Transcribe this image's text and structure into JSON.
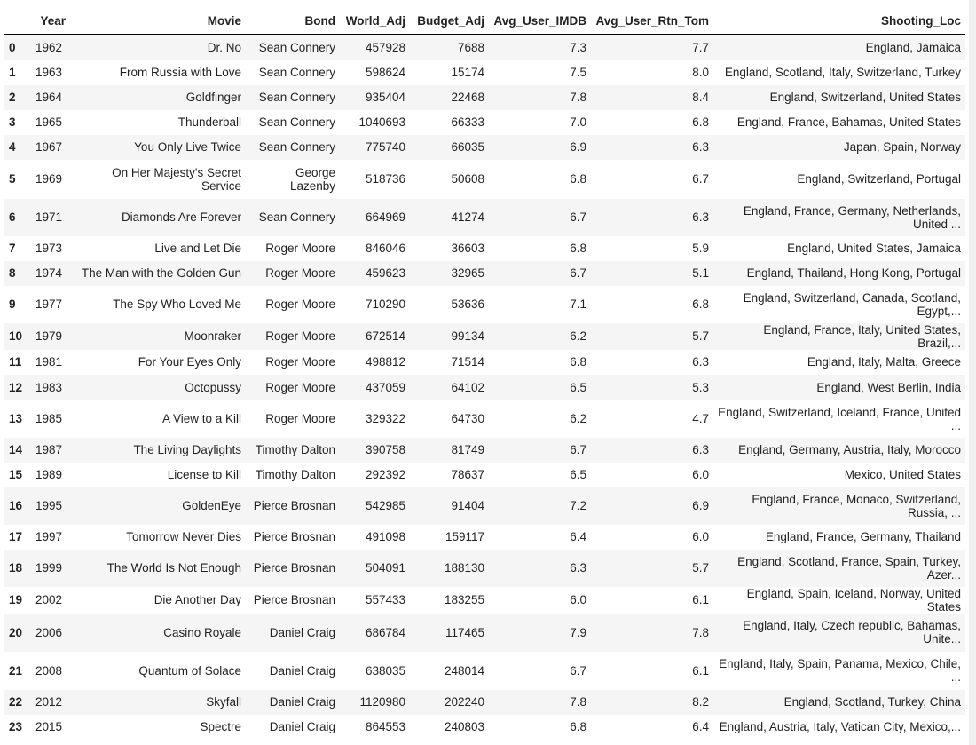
{
  "table": {
    "columns": [
      "Year",
      "Movie",
      "Bond",
      "World_Adj",
      "Budget_Adj",
      "Avg_User_IMDB",
      "Avg_User_Rtn_Tom",
      "Shooting_Loc"
    ],
    "rows": [
      {
        "index": "0",
        "Year": "1962",
        "Movie": "Dr. No",
        "Bond": "Sean Connery",
        "World_Adj": "457928",
        "Budget_Adj": "7688",
        "Avg_User_IMDB": "7.3",
        "Avg_User_Rtn_Tom": "7.7",
        "Shooting_Loc": "England, Jamaica"
      },
      {
        "index": "1",
        "Year": "1963",
        "Movie": "From Russia with Love",
        "Bond": "Sean Connery",
        "World_Adj": "598624",
        "Budget_Adj": "15174",
        "Avg_User_IMDB": "7.5",
        "Avg_User_Rtn_Tom": "8.0",
        "Shooting_Loc": "England, Scotland, Italy, Switzerland, Turkey"
      },
      {
        "index": "2",
        "Year": "1964",
        "Movie": "Goldfinger",
        "Bond": "Sean Connery",
        "World_Adj": "935404",
        "Budget_Adj": "22468",
        "Avg_User_IMDB": "7.8",
        "Avg_User_Rtn_Tom": "8.4",
        "Shooting_Loc": "England, Switzerland, United States"
      },
      {
        "index": "3",
        "Year": "1965",
        "Movie": "Thunderball",
        "Bond": "Sean Connery",
        "World_Adj": "1040693",
        "Budget_Adj": "66333",
        "Avg_User_IMDB": "7.0",
        "Avg_User_Rtn_Tom": "6.8",
        "Shooting_Loc": "England, France, Bahamas, United States"
      },
      {
        "index": "4",
        "Year": "1967",
        "Movie": "You Only Live Twice",
        "Bond": "Sean Connery",
        "World_Adj": "775740",
        "Budget_Adj": "66035",
        "Avg_User_IMDB": "6.9",
        "Avg_User_Rtn_Tom": "6.3",
        "Shooting_Loc": "Japan, Spain, Norway"
      },
      {
        "index": "5",
        "Year": "1969",
        "Movie": "On Her Majesty's Secret Service",
        "Bond": "George Lazenby",
        "World_Adj": "518736",
        "Budget_Adj": "50608",
        "Avg_User_IMDB": "6.8",
        "Avg_User_Rtn_Tom": "6.7",
        "Shooting_Loc": "England, Switzerland, Portugal"
      },
      {
        "index": "6",
        "Year": "1971",
        "Movie": "Diamonds Are Forever",
        "Bond": "Sean Connery",
        "World_Adj": "664969",
        "Budget_Adj": "41274",
        "Avg_User_IMDB": "6.7",
        "Avg_User_Rtn_Tom": "6.3",
        "Shooting_Loc": "England, France, Germany, Netherlands, United ..."
      },
      {
        "index": "7",
        "Year": "1973",
        "Movie": "Live and Let Die",
        "Bond": "Roger Moore",
        "World_Adj": "846046",
        "Budget_Adj": "36603",
        "Avg_User_IMDB": "6.8",
        "Avg_User_Rtn_Tom": "5.9",
        "Shooting_Loc": "England, United States, Jamaica"
      },
      {
        "index": "8",
        "Year": "1974",
        "Movie": "The Man with the Golden Gun",
        "Bond": "Roger Moore",
        "World_Adj": "459623",
        "Budget_Adj": "32965",
        "Avg_User_IMDB": "6.7",
        "Avg_User_Rtn_Tom": "5.1",
        "Shooting_Loc": "England, Thailand, Hong Kong, Portugal"
      },
      {
        "index": "9",
        "Year": "1977",
        "Movie": "The Spy Who Loved Me",
        "Bond": "Roger Moore",
        "World_Adj": "710290",
        "Budget_Adj": "53636",
        "Avg_User_IMDB": "7.1",
        "Avg_User_Rtn_Tom": "6.8",
        "Shooting_Loc": "England, Switzerland, Canada, Scotland, Egypt,..."
      },
      {
        "index": "10",
        "Year": "1979",
        "Movie": "Moonraker",
        "Bond": "Roger Moore",
        "World_Adj": "672514",
        "Budget_Adj": "99134",
        "Avg_User_IMDB": "6.2",
        "Avg_User_Rtn_Tom": "5.7",
        "Shooting_Loc": "England, France, Italy, United States, Brazil,..."
      },
      {
        "index": "11",
        "Year": "1981",
        "Movie": "For Your Eyes Only",
        "Bond": "Roger Moore",
        "World_Adj": "498812",
        "Budget_Adj": "71514",
        "Avg_User_IMDB": "6.8",
        "Avg_User_Rtn_Tom": "6.3",
        "Shooting_Loc": "England, Italy, Malta, Greece"
      },
      {
        "index": "12",
        "Year": "1983",
        "Movie": "Octopussy",
        "Bond": "Roger Moore",
        "World_Adj": "437059",
        "Budget_Adj": "64102",
        "Avg_User_IMDB": "6.5",
        "Avg_User_Rtn_Tom": "5.3",
        "Shooting_Loc": "England, West Berlin, India"
      },
      {
        "index": "13",
        "Year": "1985",
        "Movie": "A View to a Kill",
        "Bond": "Roger Moore",
        "World_Adj": "329322",
        "Budget_Adj": "64730",
        "Avg_User_IMDB": "6.2",
        "Avg_User_Rtn_Tom": "4.7",
        "Shooting_Loc": "England, Switzerland, Iceland, France, United ..."
      },
      {
        "index": "14",
        "Year": "1987",
        "Movie": "The Living Daylights",
        "Bond": "Timothy Dalton",
        "World_Adj": "390758",
        "Budget_Adj": "81749",
        "Avg_User_IMDB": "6.7",
        "Avg_User_Rtn_Tom": "6.3",
        "Shooting_Loc": "England, Germany, Austria, Italy, Morocco"
      },
      {
        "index": "15",
        "Year": "1989",
        "Movie": "License to Kill",
        "Bond": "Timothy Dalton",
        "World_Adj": "292392",
        "Budget_Adj": "78637",
        "Avg_User_IMDB": "6.5",
        "Avg_User_Rtn_Tom": "6.0",
        "Shooting_Loc": "Mexico, United States"
      },
      {
        "index": "16",
        "Year": "1995",
        "Movie": "GoldenEye",
        "Bond": "Pierce Brosnan",
        "World_Adj": "542985",
        "Budget_Adj": "91404",
        "Avg_User_IMDB": "7.2",
        "Avg_User_Rtn_Tom": "6.9",
        "Shooting_Loc": "England, France, Monaco, Switzerland, Russia, ..."
      },
      {
        "index": "17",
        "Year": "1997",
        "Movie": "Tomorrow Never Dies",
        "Bond": "Pierce Brosnan",
        "World_Adj": "491098",
        "Budget_Adj": "159117",
        "Avg_User_IMDB": "6.4",
        "Avg_User_Rtn_Tom": "6.0",
        "Shooting_Loc": "England, France, Germany, Thailand"
      },
      {
        "index": "18",
        "Year": "1999",
        "Movie": "The World Is Not Enough",
        "Bond": "Pierce Brosnan",
        "World_Adj": "504091",
        "Budget_Adj": "188130",
        "Avg_User_IMDB": "6.3",
        "Avg_User_Rtn_Tom": "5.7",
        "Shooting_Loc": "England, Scotland, France, Spain, Turkey, Azer..."
      },
      {
        "index": "19",
        "Year": "2002",
        "Movie": "Die Another Day",
        "Bond": "Pierce Brosnan",
        "World_Adj": "557433",
        "Budget_Adj": "183255",
        "Avg_User_IMDB": "6.0",
        "Avg_User_Rtn_Tom": "6.1",
        "Shooting_Loc": "England, Spain, Iceland, Norway, United States"
      },
      {
        "index": "20",
        "Year": "2006",
        "Movie": "Casino Royale",
        "Bond": "Daniel Craig",
        "World_Adj": "686784",
        "Budget_Adj": "117465",
        "Avg_User_IMDB": "7.9",
        "Avg_User_Rtn_Tom": "7.8",
        "Shooting_Loc": "England, Italy, Czech republic, Bahamas, Unite..."
      },
      {
        "index": "21",
        "Year": "2008",
        "Movie": "Quantum of Solace",
        "Bond": "Daniel Craig",
        "World_Adj": "638035",
        "Budget_Adj": "248014",
        "Avg_User_IMDB": "6.7",
        "Avg_User_Rtn_Tom": "6.1",
        "Shooting_Loc": "England, Italy, Spain, Panama, Mexico, Chile, ..."
      },
      {
        "index": "22",
        "Year": "2012",
        "Movie": "Skyfall",
        "Bond": "Daniel Craig",
        "World_Adj": "1120980",
        "Budget_Adj": "202240",
        "Avg_User_IMDB": "7.8",
        "Avg_User_Rtn_Tom": "8.2",
        "Shooting_Loc": "England, Scotland, Turkey, China"
      },
      {
        "index": "23",
        "Year": "2015",
        "Movie": "Spectre",
        "Bond": "Daniel Craig",
        "World_Adj": "864553",
        "Budget_Adj": "240803",
        "Avg_User_IMDB": "6.8",
        "Avg_User_Rtn_Tom": "6.4",
        "Shooting_Loc": "England, Austria, Italy, Vatican City, Mexico,..."
      }
    ]
  }
}
